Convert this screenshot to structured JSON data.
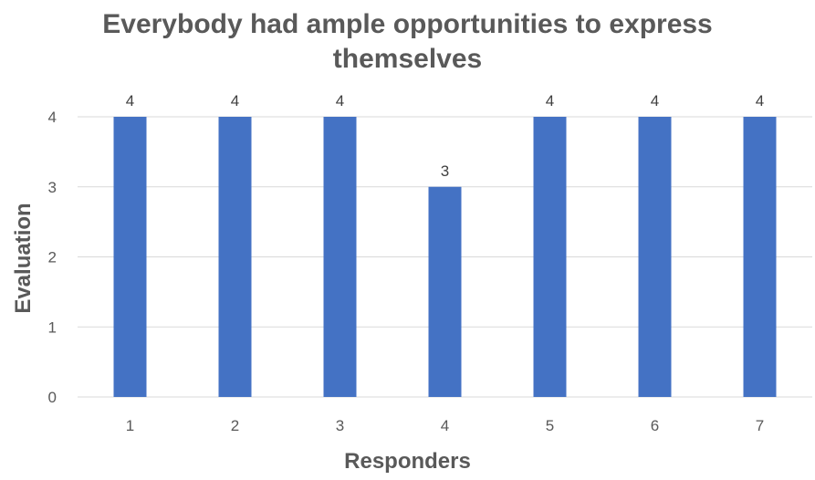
{
  "chart_data": {
    "type": "bar",
    "title": "Everybody had ample opportunities to express themselves",
    "xlabel": "Responders",
    "ylabel": "Evaluation",
    "categories": [
      "1",
      "2",
      "3",
      "4",
      "5",
      "6",
      "7"
    ],
    "values": [
      4,
      4,
      4,
      3,
      4,
      4,
      4
    ],
    "data_labels": [
      "4",
      "4",
      "4",
      "3",
      "4",
      "4",
      "4"
    ],
    "y_ticks": [
      "0",
      "1",
      "2",
      "3",
      "4"
    ],
    "ylim": [
      0,
      4
    ],
    "grid": true,
    "legend": "none",
    "colors": {
      "bar": "#4472C4",
      "grid": "#D9D9D9",
      "text": "#595959"
    }
  }
}
